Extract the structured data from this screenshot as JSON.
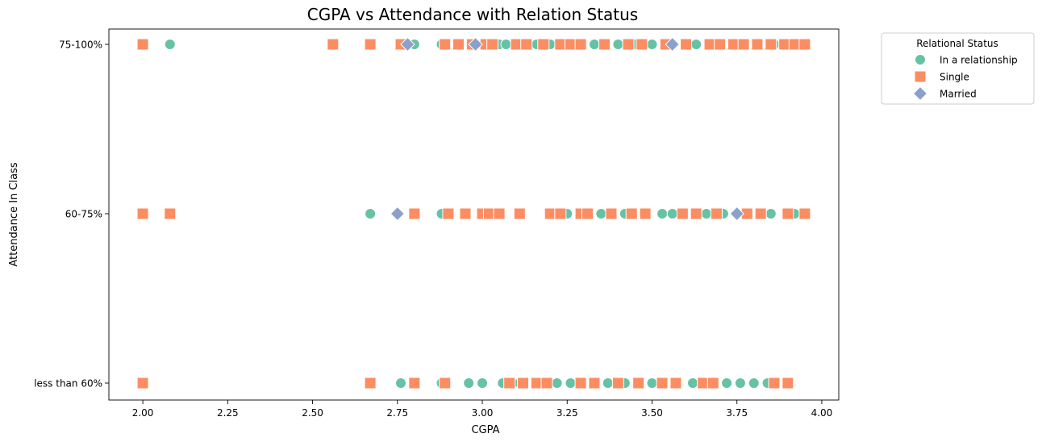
{
  "chart_data": {
    "type": "scatter",
    "title": "CGPA vs Attendance with Relation Status",
    "xlabel": "CGPA",
    "ylabel": "Attendance In Class",
    "xlim": [
      1.9,
      4.05
    ],
    "xticks": [
      "2.00",
      "2.25",
      "2.50",
      "2.75",
      "3.00",
      "3.25",
      "3.50",
      "3.75",
      "4.00"
    ],
    "categories": [
      "less than 60%",
      "60-75%",
      "75-100%"
    ],
    "grid": false,
    "legend": {
      "title": "Relational Status",
      "placement": "outside-top-right"
    },
    "series": [
      {
        "name": "In a relationship",
        "marker": "circle",
        "color": "#66c2a5",
        "points": [
          {
            "x": 2.08,
            "y": "75-100%"
          },
          {
            "x": 2.8,
            "y": "75-100%"
          },
          {
            "x": 2.88,
            "y": "75-100%"
          },
          {
            "x": 3.05,
            "y": "75-100%"
          },
          {
            "x": 3.07,
            "y": "75-100%"
          },
          {
            "x": 3.16,
            "y": "75-100%"
          },
          {
            "x": 3.2,
            "y": "75-100%"
          },
          {
            "x": 3.33,
            "y": "75-100%"
          },
          {
            "x": 3.4,
            "y": "75-100%"
          },
          {
            "x": 3.45,
            "y": "75-100%"
          },
          {
            "x": 3.5,
            "y": "75-100%"
          },
          {
            "x": 3.63,
            "y": "75-100%"
          },
          {
            "x": 3.86,
            "y": "75-100%"
          },
          {
            "x": 2.67,
            "y": "60-75%"
          },
          {
            "x": 2.88,
            "y": "60-75%"
          },
          {
            "x": 3.25,
            "y": "60-75%"
          },
          {
            "x": 3.35,
            "y": "60-75%"
          },
          {
            "x": 3.42,
            "y": "60-75%"
          },
          {
            "x": 3.53,
            "y": "60-75%"
          },
          {
            "x": 3.56,
            "y": "60-75%"
          },
          {
            "x": 3.66,
            "y": "60-75%"
          },
          {
            "x": 3.71,
            "y": "60-75%"
          },
          {
            "x": 3.85,
            "y": "60-75%"
          },
          {
            "x": 3.92,
            "y": "60-75%"
          },
          {
            "x": 2.76,
            "y": "less than 60%"
          },
          {
            "x": 2.88,
            "y": "less than 60%"
          },
          {
            "x": 2.96,
            "y": "less than 60%"
          },
          {
            "x": 3.0,
            "y": "less than 60%"
          },
          {
            "x": 3.06,
            "y": "less than 60%"
          },
          {
            "x": 3.11,
            "y": "less than 60%"
          },
          {
            "x": 3.22,
            "y": "less than 60%"
          },
          {
            "x": 3.26,
            "y": "less than 60%"
          },
          {
            "x": 3.37,
            "y": "less than 60%"
          },
          {
            "x": 3.42,
            "y": "less than 60%"
          },
          {
            "x": 3.5,
            "y": "less than 60%"
          },
          {
            "x": 3.62,
            "y": "less than 60%"
          },
          {
            "x": 3.72,
            "y": "less than 60%"
          },
          {
            "x": 3.76,
            "y": "less than 60%"
          },
          {
            "x": 3.8,
            "y": "less than 60%"
          },
          {
            "x": 3.84,
            "y": "less than 60%"
          }
        ]
      },
      {
        "name": "Single",
        "marker": "square",
        "color": "#fc8d62",
        "points": [
          {
            "x": 2.0,
            "y": "75-100%"
          },
          {
            "x": 2.56,
            "y": "75-100%"
          },
          {
            "x": 2.67,
            "y": "75-100%"
          },
          {
            "x": 2.76,
            "y": "75-100%"
          },
          {
            "x": 2.89,
            "y": "75-100%"
          },
          {
            "x": 2.93,
            "y": "75-100%"
          },
          {
            "x": 2.97,
            "y": "75-100%"
          },
          {
            "x": 3.01,
            "y": "75-100%"
          },
          {
            "x": 3.03,
            "y": "75-100%"
          },
          {
            "x": 3.1,
            "y": "75-100%"
          },
          {
            "x": 3.13,
            "y": "75-100%"
          },
          {
            "x": 3.18,
            "y": "75-100%"
          },
          {
            "x": 3.23,
            "y": "75-100%"
          },
          {
            "x": 3.26,
            "y": "75-100%"
          },
          {
            "x": 3.29,
            "y": "75-100%"
          },
          {
            "x": 3.36,
            "y": "75-100%"
          },
          {
            "x": 3.43,
            "y": "75-100%"
          },
          {
            "x": 3.47,
            "y": "75-100%"
          },
          {
            "x": 3.54,
            "y": "75-100%"
          },
          {
            "x": 3.6,
            "y": "75-100%"
          },
          {
            "x": 3.67,
            "y": "75-100%"
          },
          {
            "x": 3.7,
            "y": "75-100%"
          },
          {
            "x": 3.74,
            "y": "75-100%"
          },
          {
            "x": 3.77,
            "y": "75-100%"
          },
          {
            "x": 3.81,
            "y": "75-100%"
          },
          {
            "x": 3.85,
            "y": "75-100%"
          },
          {
            "x": 3.89,
            "y": "75-100%"
          },
          {
            "x": 3.92,
            "y": "75-100%"
          },
          {
            "x": 3.95,
            "y": "75-100%"
          },
          {
            "x": 2.0,
            "y": "60-75%"
          },
          {
            "x": 2.08,
            "y": "60-75%"
          },
          {
            "x": 2.8,
            "y": "60-75%"
          },
          {
            "x": 2.9,
            "y": "60-75%"
          },
          {
            "x": 2.95,
            "y": "60-75%"
          },
          {
            "x": 3.0,
            "y": "60-75%"
          },
          {
            "x": 3.02,
            "y": "60-75%"
          },
          {
            "x": 3.05,
            "y": "60-75%"
          },
          {
            "x": 3.11,
            "y": "60-75%"
          },
          {
            "x": 3.2,
            "y": "60-75%"
          },
          {
            "x": 3.23,
            "y": "60-75%"
          },
          {
            "x": 3.29,
            "y": "60-75%"
          },
          {
            "x": 3.31,
            "y": "60-75%"
          },
          {
            "x": 3.38,
            "y": "60-75%"
          },
          {
            "x": 3.44,
            "y": "60-75%"
          },
          {
            "x": 3.48,
            "y": "60-75%"
          },
          {
            "x": 3.59,
            "y": "60-75%"
          },
          {
            "x": 3.63,
            "y": "60-75%"
          },
          {
            "x": 3.69,
            "y": "60-75%"
          },
          {
            "x": 3.78,
            "y": "60-75%"
          },
          {
            "x": 3.82,
            "y": "60-75%"
          },
          {
            "x": 3.9,
            "y": "60-75%"
          },
          {
            "x": 3.95,
            "y": "60-75%"
          },
          {
            "x": 2.0,
            "y": "less than 60%"
          },
          {
            "x": 2.67,
            "y": "less than 60%"
          },
          {
            "x": 2.8,
            "y": "less than 60%"
          },
          {
            "x": 2.89,
            "y": "less than 60%"
          },
          {
            "x": 3.08,
            "y": "less than 60%"
          },
          {
            "x": 3.12,
            "y": "less than 60%"
          },
          {
            "x": 3.16,
            "y": "less than 60%"
          },
          {
            "x": 3.19,
            "y": "less than 60%"
          },
          {
            "x": 3.29,
            "y": "less than 60%"
          },
          {
            "x": 3.33,
            "y": "less than 60%"
          },
          {
            "x": 3.4,
            "y": "less than 60%"
          },
          {
            "x": 3.46,
            "y": "less than 60%"
          },
          {
            "x": 3.53,
            "y": "less than 60%"
          },
          {
            "x": 3.57,
            "y": "less than 60%"
          },
          {
            "x": 3.65,
            "y": "less than 60%"
          },
          {
            "x": 3.68,
            "y": "less than 60%"
          },
          {
            "x": 3.86,
            "y": "less than 60%"
          },
          {
            "x": 3.9,
            "y": "less than 60%"
          }
        ]
      },
      {
        "name": "Married",
        "marker": "diamond",
        "color": "#8da0cb",
        "points": [
          {
            "x": 2.78,
            "y": "75-100%"
          },
          {
            "x": 2.98,
            "y": "75-100%"
          },
          {
            "x": 3.56,
            "y": "75-100%"
          },
          {
            "x": 2.75,
            "y": "60-75%"
          },
          {
            "x": 3.75,
            "y": "60-75%"
          }
        ]
      }
    ]
  }
}
